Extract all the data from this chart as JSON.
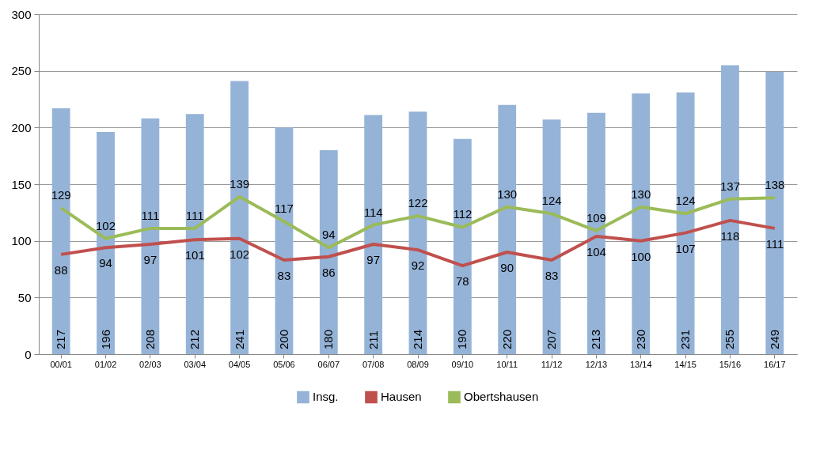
{
  "chart_data": {
    "type": "bar",
    "categories": [
      "00/01",
      "01/02",
      "02/03",
      "03/04",
      "04/05",
      "05/06",
      "06/07",
      "07/08",
      "08/09",
      "09/10",
      "10/11",
      "11/12",
      "12/13",
      "13/14",
      "14/15",
      "15/16",
      "16/17"
    ],
    "series": [
      {
        "name": "Insg.",
        "color": "#95b3d7",
        "values": [
          217,
          196,
          208,
          212,
          241,
          200,
          180,
          211,
          214,
          190,
          220,
          207,
          213,
          230,
          231,
          255,
          249
        ]
      },
      {
        "name": "Hausen",
        "type": "line",
        "color": "#c0504d",
        "values": [
          88,
          94,
          97,
          101,
          102,
          83,
          86,
          97,
          92,
          78,
          90,
          83,
          104,
          100,
          107,
          118,
          111
        ]
      },
      {
        "name": "Obertshausen",
        "type": "line",
        "color": "#9bbb59",
        "values": [
          129,
          102,
          111,
          111,
          139,
          117,
          94,
          114,
          122,
          112,
          130,
          124,
          109,
          130,
          124,
          137,
          138
        ]
      }
    ],
    "ylim": [
      0,
      300
    ],
    "yticks": [
      0,
      50,
      100,
      150,
      200,
      250,
      300
    ],
    "grid": "y",
    "legend": "bottom",
    "data_labels": true,
    "marker": "none"
  }
}
